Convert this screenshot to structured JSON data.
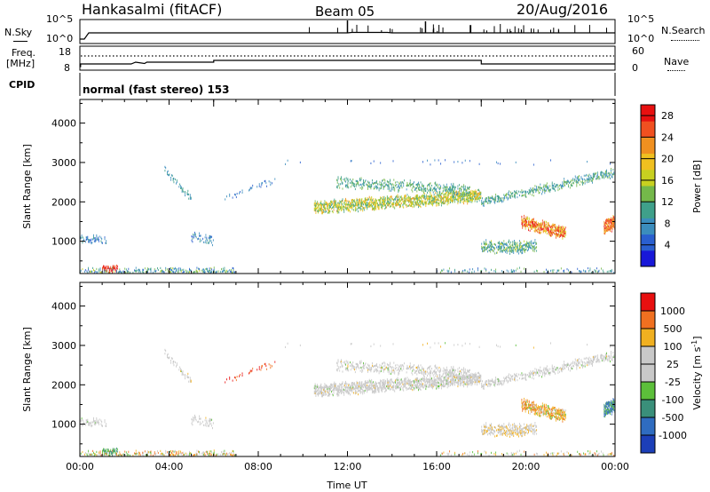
{
  "header": {
    "title": "Hankasalmi (fitACF)",
    "beam": "Beam 05",
    "date": "20/Aug/2016"
  },
  "left_labels": {
    "nsky": "N.Sky",
    "freq": "Freq.",
    "freq_unit": "[MHz]",
    "cpid": "CPID"
  },
  "right_labels": {
    "nsearch": "N.Search",
    "nave": "Nave"
  },
  "cpid_text": "normal (fast stereo) 153",
  "noise_ticks_left": [
    "10^5",
    "10^0"
  ],
  "noise_ticks_right": [
    "10^5",
    "10^0"
  ],
  "freq_ticks_left": [
    "18",
    "8"
  ],
  "nave_ticks_right": [
    "60",
    "0"
  ],
  "chart_data": [
    {
      "type": "heatmap",
      "title": "",
      "ylabel": "Slant Range [km]",
      "xlabel": "",
      "xlim": [
        "00:00",
        "24:00"
      ],
      "ylim": [
        180,
        4600
      ],
      "y_ticks": [
        "1000",
        "2000",
        "3000",
        "4000"
      ],
      "colorbar": {
        "label": "Power [dB]",
        "ticks": [
          "4",
          "8",
          "12",
          "16",
          "20",
          "24",
          "28"
        ],
        "range": [
          0,
          30
        ],
        "colors": [
          "#1818d8",
          "#2a5fcf",
          "#3b8dbd",
          "#3fa08a",
          "#74b84a",
          "#c8d020",
          "#f0c020",
          "#f09020",
          "#f05020",
          "#e81010"
        ]
      }
    },
    {
      "type": "heatmap",
      "title": "",
      "ylabel": "Slant Range [km]",
      "xlabel": "Time UT",
      "xlim": [
        "00:00",
        "24:00"
      ],
      "ylim": [
        180,
        4600
      ],
      "y_ticks": [
        "1000",
        "2000",
        "3000",
        "4000"
      ],
      "x_ticks": [
        "00:00",
        "04:00",
        "08:00",
        "12:00",
        "16:00",
        "20:00",
        "00:00"
      ],
      "colorbar": {
        "label": "Velocity [m s",
        "label_sup": "-1",
        "label_end": "]",
        "ticks": [
          "1000",
          "500",
          "100",
          "25",
          "-25",
          "-100",
          "-500",
          "-1000"
        ],
        "colors": [
          "#1c3fb8",
          "#2f6cc0",
          "#3a8f7a",
          "#5cbf3a",
          "#c8c8c8",
          "#c8c8c8",
          "#f0b020",
          "#f07020",
          "#e81010"
        ]
      }
    }
  ]
}
